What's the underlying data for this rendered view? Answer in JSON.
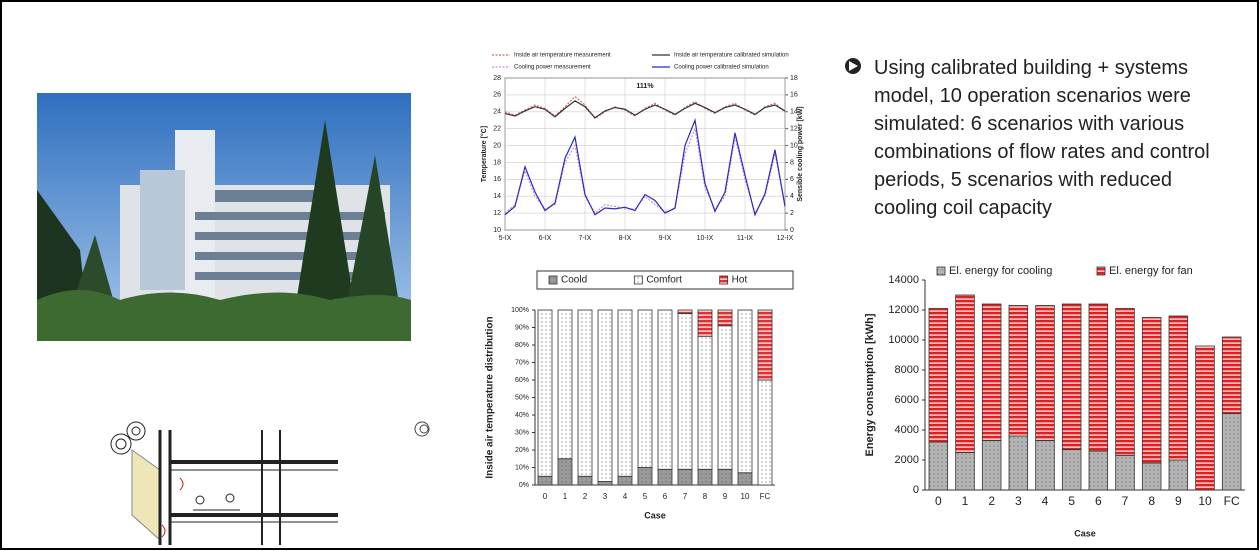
{
  "chart_data": [
    {
      "type": "line",
      "annotation": "111%",
      "y_label": "Temperature [°C]",
      "y2_label": "Sensible cooling power [kW]",
      "x": [
        5,
        5.25,
        5.5,
        5.75,
        6,
        6.25,
        6.5,
        6.75,
        7,
        7.25,
        7.5,
        7.75,
        8,
        8.25,
        8.5,
        8.75,
        9,
        9.25,
        9.5,
        9.75,
        10,
        10.25,
        10.5,
        10.75,
        11,
        11.25,
        11.5,
        11.75,
        12
      ],
      "xlim": [
        5,
        12
      ],
      "xticks": [
        {
          "value": 5,
          "label": "5-IX"
        },
        {
          "value": 6,
          "label": "6-IX"
        },
        {
          "value": 7,
          "label": "7-IX"
        },
        {
          "value": 8,
          "label": "8-IX"
        },
        {
          "value": 9,
          "label": "9-IX"
        },
        {
          "value": 10,
          "label": "10-IX"
        },
        {
          "value": 11,
          "label": "11-IX"
        },
        {
          "value": 12,
          "label": "12-IX"
        }
      ],
      "ylim": [
        10,
        28
      ],
      "yticks": [
        10,
        12,
        14,
        16,
        18,
        20,
        22,
        24,
        26,
        28
      ],
      "y2lim": [
        0,
        18
      ],
      "y2ticks": [
        0,
        2,
        4,
        6,
        8,
        10,
        12,
        14,
        16,
        18
      ],
      "grid": true,
      "series": [
        {
          "name": "Inside air temperature measurement",
          "color": "#d06a6a",
          "dashed": true,
          "values": [
            24,
            23.6,
            24.2,
            24.8,
            24.4,
            23.5,
            24.6,
            25.8,
            24.8,
            23.2,
            24,
            24.6,
            24.2,
            23.5,
            24.4,
            25,
            24.2,
            23.6,
            24.5,
            25.2,
            24.4,
            23.8,
            24.6,
            25,
            24.2,
            23.6,
            24.6,
            25,
            24
          ]
        },
        {
          "name": "Inside air temperature calibrated simulation",
          "color": "#333333",
          "dashed": false,
          "values": [
            23.8,
            23.5,
            24.1,
            24.6,
            24.3,
            23.4,
            24.4,
            25.3,
            24.6,
            23.3,
            24.1,
            24.5,
            24.3,
            23.6,
            24.3,
            24.8,
            24.3,
            23.7,
            24.4,
            25,
            24.5,
            23.9,
            24.5,
            24.8,
            24.3,
            23.7,
            24.5,
            24.8,
            24.1
          ]
        },
        {
          "name": "Cooling power measurement",
          "color": "#c890c8",
          "dashed": true,
          "axis": "y2",
          "values": [
            2,
            3,
            7,
            4,
            2.5,
            3,
            8,
            10,
            4,
            2,
            3,
            2.8,
            2.5,
            2.5,
            4,
            3,
            2.2,
            2.5,
            9,
            12,
            5,
            2.5,
            4,
            11,
            6,
            2,
            4,
            9,
            3
          ]
        },
        {
          "name": "Cooling power calibrated simulation",
          "color": "#2a2ac0",
          "dashed": false,
          "axis": "y2",
          "values": [
            1.8,
            2.8,
            7.5,
            4.5,
            2.3,
            3.2,
            8.5,
            11,
            4.2,
            1.8,
            2.6,
            2.5,
            2.7,
            2.3,
            4.2,
            3.5,
            2,
            2.6,
            10,
            13,
            5.5,
            2.2,
            4.5,
            11.5,
            6.5,
            1.8,
            4.3,
            9.5,
            2.8
          ]
        }
      ]
    },
    {
      "type": "bar",
      "stacked": true,
      "y_label": "Inside air temperature distribution",
      "x_label": "Case",
      "categories": [
        "0",
        "1",
        "2",
        "3",
        "4",
        "5",
        "6",
        "7",
        "8",
        "9",
        "10",
        "FC"
      ],
      "ylim": [
        0,
        100
      ],
      "yticks": [
        {
          "value": 0,
          "label": "0%"
        },
        {
          "value": 10,
          "label": "10%"
        },
        {
          "value": 20,
          "label": "20%"
        },
        {
          "value": 30,
          "label": "30%"
        },
        {
          "value": 40,
          "label": "40%"
        },
        {
          "value": 50,
          "label": "50%"
        },
        {
          "value": 60,
          "label": "60%"
        },
        {
          "value": 70,
          "label": "70%"
        },
        {
          "value": 80,
          "label": "80%"
        },
        {
          "value": 90,
          "label": "90%"
        },
        {
          "value": 100,
          "label": "100%"
        }
      ],
      "grid": false,
      "series": [
        {
          "name": "Coold",
          "color": "#9a9a9a",
          "hatch": "dots",
          "values": [
            5,
            15,
            5,
            2,
            5,
            10,
            9,
            9,
            9,
            9,
            7,
            0
          ]
        },
        {
          "name": "Comfort",
          "color": "#ffffff",
          "hatch": "dots",
          "values": [
            95,
            85,
            95,
            98,
            95,
            90,
            91,
            89,
            76,
            82,
            93,
            60
          ]
        },
        {
          "name": "Hot",
          "color": "#e03030",
          "hatch": "horizontal",
          "values": [
            0,
            0,
            0,
            0,
            0,
            0,
            0,
            2,
            15,
            9,
            0,
            40
          ]
        }
      ]
    },
    {
      "type": "bar",
      "stacked": true,
      "y_label": "Energy consumption [kWh]",
      "x_label": "Case",
      "categories": [
        "0",
        "1",
        "2",
        "3",
        "4",
        "5",
        "6",
        "7",
        "8",
        "9",
        "10",
        "FC"
      ],
      "ylim": [
        0,
        14000
      ],
      "yticks": [
        0,
        2000,
        4000,
        6000,
        8000,
        10000,
        12000,
        14000
      ],
      "grid": false,
      "series": [
        {
          "name": "El. energy for cooling",
          "color": "#b4b4b4",
          "hatch": "dots",
          "values": [
            3200,
            2500,
            3300,
            3600,
            3300,
            2700,
            2600,
            2300,
            1800,
            2000,
            0,
            5100
          ]
        },
        {
          "name": "El. energy for fan",
          "color": "#e02020",
          "hatch": "horizontal",
          "values": [
            8900,
            10500,
            9100,
            8700,
            9000,
            9700,
            9800,
            9800,
            9700,
            9600,
            9600,
            5100
          ]
        }
      ]
    }
  ],
  "bullet": "Using calibrated building + systems model, 10 operation scenarios were simulated: 6 scenarios with various combinations of flow rates and control periods, 5 scenarios with reduced cooling coil capacity"
}
